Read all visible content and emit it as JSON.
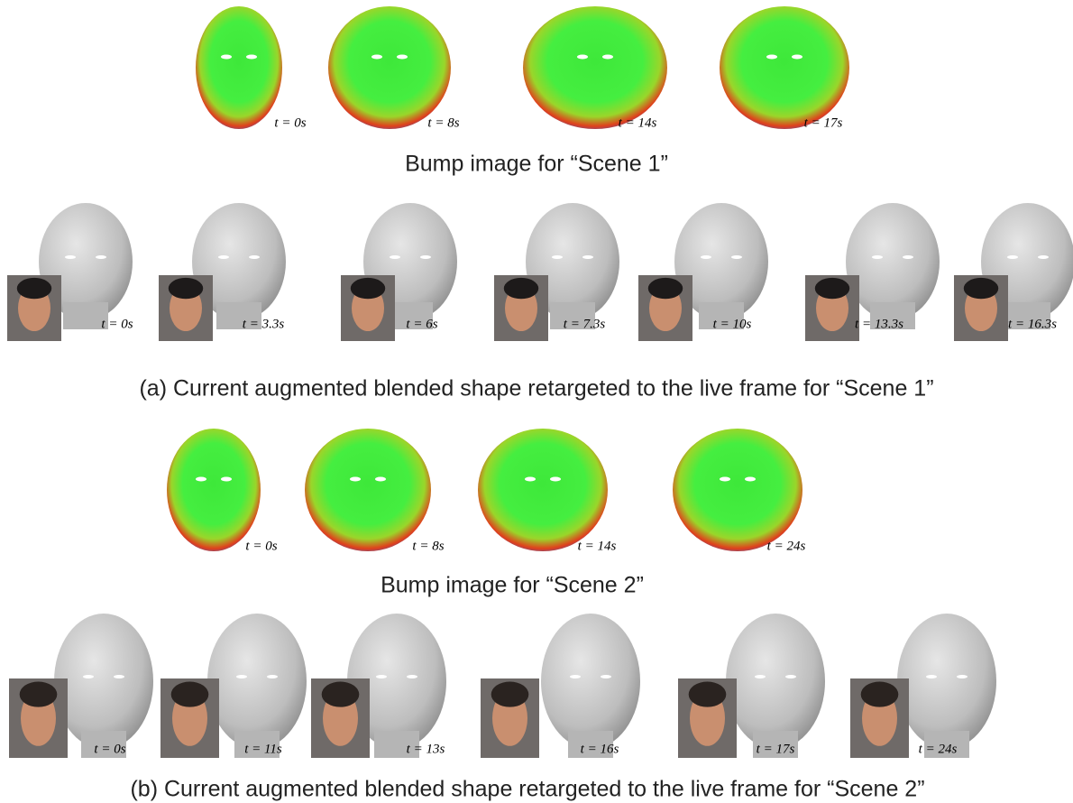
{
  "scene1": {
    "bump_times": [
      "t = 0s",
      "t = 8s",
      "t = 14s",
      "t = 17s"
    ],
    "bump_caption": "Bump image for “Scene 1”",
    "shape_times": [
      "t = 0s",
      "t = 3.3s",
      "t = 6s",
      "t = 7.3s",
      "t = 10s",
      "t = 13.3s",
      "t = 16.3s"
    ],
    "shape_caption": "(a) Current augmented blended shape retargeted to the live frame for “Scene 1”"
  },
  "scene2": {
    "bump_times": [
      "t = 0s",
      "t = 8s",
      "t = 14s",
      "t = 24s"
    ],
    "bump_caption": "Bump image for “Scene 2”",
    "shape_times": [
      "t = 0s",
      "t = 11s",
      "t = 13s",
      "t = 16s",
      "t = 17s",
      "t = 24s"
    ],
    "shape_caption": "(b) Current augmented blended shape retargeted to the live frame for “Scene 2”"
  }
}
